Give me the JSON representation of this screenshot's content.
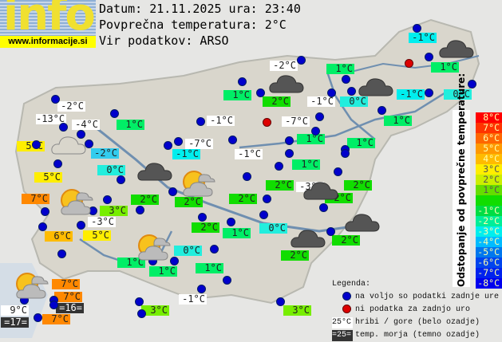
{
  "logo": {
    "text": "info",
    "url": "www.informacije.si"
  },
  "header": {
    "date_line": "Datum: 21.11.2025 ura: 23:40",
    "avg_line": "Povprečna temperatura: 2°C",
    "source_line": "Vir podatkov: ARSO"
  },
  "colors": {
    "station_ok": "#0000cc",
    "station_missing": "#dd0000",
    "mountain_bg": "#ffffff",
    "sea_bg": "#333333"
  },
  "stations": [
    {
      "t": "-1°C",
      "bg": "#00eeee"
    },
    {
      "t": "1°C",
      "bg": "#00ee66"
    },
    {
      "t": "-2°C",
      "bg": "#ffffff"
    },
    {
      "t": "1°C",
      "bg": "#00ee66"
    },
    {
      "t": "1°C",
      "bg": "#00ee66"
    },
    {
      "t": "2°C",
      "bg": "#11dd00"
    },
    {
      "t": "-1°C",
      "bg": "#ffffff"
    },
    {
      "t": "0°C",
      "bg": "#22eedd"
    },
    {
      "t": "-1°C",
      "bg": "#00eeee"
    },
    {
      "t": "0°C",
      "bg": "#22eedd"
    },
    {
      "t": "-7°C",
      "bg": "#ffffff"
    },
    {
      "t": "1°C",
      "bg": "#00ee66"
    },
    {
      "t": "1°C",
      "bg": "#00ee66"
    },
    {
      "t": "1°C",
      "bg": "#00ee66"
    },
    {
      "t": "-1°C",
      "bg": "#ffffff"
    },
    {
      "t": "-2°C",
      "bg": "#ffffff"
    },
    {
      "t": "-13°C",
      "bg": "#ffffff"
    },
    {
      "t": "-4°C",
      "bg": "#ffffff"
    },
    {
      "t": "1°C",
      "bg": "#00ee66"
    },
    {
      "t": "5°C",
      "bg": "#ffee00"
    },
    {
      "t": "-2°C",
      "bg": "#33ccee"
    },
    {
      "t": "-7°C",
      "bg": "#ffffff"
    },
    {
      "t": "-1°C",
      "bg": "#00eeee"
    },
    {
      "t": "0°C",
      "bg": "#22eedd"
    },
    {
      "t": "-1°C",
      "bg": "#ffffff"
    },
    {
      "t": "5°C",
      "bg": "#ffee00"
    },
    {
      "t": "1°C",
      "bg": "#00ee66"
    },
    {
      "t": "7°C",
      "bg": "#ff8800"
    },
    {
      "t": "2°C",
      "bg": "#11dd00"
    },
    {
      "t": "3°C",
      "bg": "#77ee00"
    },
    {
      "t": "2°C",
      "bg": "#11dd00"
    },
    {
      "t": "2°C",
      "bg": "#11dd00"
    },
    {
      "t": "2°C",
      "bg": "#11dd00"
    },
    {
      "t": "-3°C",
      "bg": "#ffffff"
    },
    {
      "t": "2°C",
      "bg": "#11dd00"
    },
    {
      "t": "2°C",
      "bg": "#11dd00"
    },
    {
      "t": "-3°C",
      "bg": "#ffffff"
    },
    {
      "t": "6°C",
      "bg": "#ffbb00"
    },
    {
      "t": "5°C",
      "bg": "#ffee00"
    },
    {
      "t": "2°C",
      "bg": "#11dd00"
    },
    {
      "t": "1°C",
      "bg": "#00ee66"
    },
    {
      "t": "0°C",
      "bg": "#22eedd"
    },
    {
      "t": "2°C",
      "bg": "#11dd00"
    },
    {
      "t": "2°C",
      "bg": "#11dd00"
    },
    {
      "t": "0°C",
      "bg": "#22eedd"
    },
    {
      "t": "1°C",
      "bg": "#00ee66"
    },
    {
      "t": "1°C",
      "bg": "#00ee66"
    },
    {
      "t": "1°C",
      "bg": "#00ee66"
    },
    {
      "t": "7°C",
      "bg": "#ff8800"
    },
    {
      "t": "7°C",
      "bg": "#ff8800"
    },
    {
      "t": "=16=",
      "bg": "#333333"
    },
    {
      "t": "9°C",
      "bg": "#ffffff"
    },
    {
      "t": "=17=",
      "bg": "#333333"
    },
    {
      "t": "7°C",
      "bg": "#ff8800"
    },
    {
      "t": "-1°C",
      "bg": "#ffffff"
    },
    {
      "t": "3°C",
      "bg": "#77ee00"
    },
    {
      "t": "3°C",
      "bg": "#77ee00"
    }
  ],
  "weather_icons": [
    "cloudy",
    "cloudy",
    "cloudy",
    "cloudy",
    "cloudy",
    "cloudy",
    "cloudy",
    "light-cloud",
    "partly-sunny",
    "partly-sunny",
    "partly-sunny",
    "partly-sunny"
  ],
  "scale": {
    "title": "Odstopanje od povprečne temperature:",
    "steps": [
      {
        "t": "8°C",
        "c": "#ff0000"
      },
      {
        "t": "7°C",
        "c": "#ff3300"
      },
      {
        "t": "6°C",
        "c": "#ff6600"
      },
      {
        "t": "5°C",
        "c": "#ff9900"
      },
      {
        "t": "4°C",
        "c": "#ffbb00"
      },
      {
        "t": "3°C",
        "c": "#ffee00"
      },
      {
        "t": "2°C",
        "c": "#ccee00"
      },
      {
        "t": "1°C",
        "c": "#66dd00"
      },
      {
        "t": "",
        "c": "#11dd00"
      },
      {
        "t": "-1°C",
        "c": "#00dd44"
      },
      {
        "t": "-2°C",
        "c": "#00ee99"
      },
      {
        "t": "-3°C",
        "c": "#00eeee"
      },
      {
        "t": "-4°C",
        "c": "#00bbff"
      },
      {
        "t": "-5°C",
        "c": "#0077ee"
      },
      {
        "t": "-6°C",
        "c": "#0044ee"
      },
      {
        "t": "-7°C",
        "c": "#0022ee"
      },
      {
        "t": "-8°C",
        "c": "#0000ee"
      }
    ]
  },
  "legend": {
    "title": "Legenda:",
    "ok": "na voljo so podatki zadnje ure",
    "missing": "ni podatka za zadnjo uro",
    "mountain_sample": "25°C",
    "mountain": "hribi / gore (belo ozadje)",
    "sea_sample": "=25=",
    "sea": "temp. morja (temno ozadje)"
  }
}
